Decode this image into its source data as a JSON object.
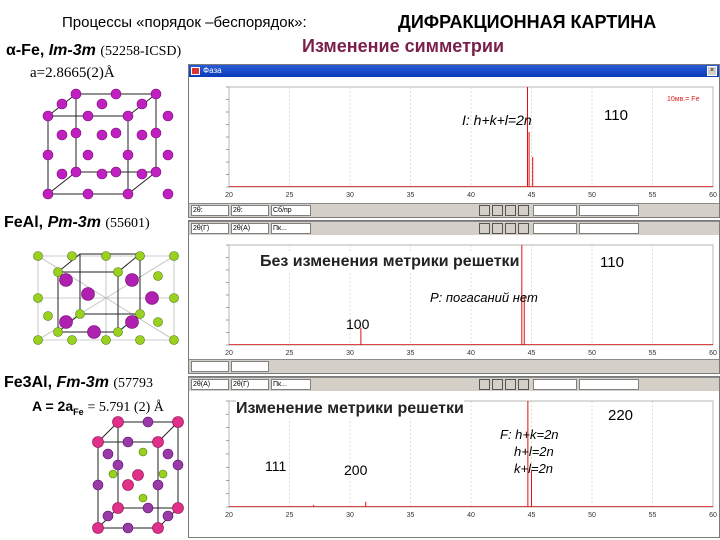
{
  "header": {
    "left_title": "Процессы «порядок –беспорядок»:",
    "right_title": "ДИФРАКЦИОННАЯ КАРТИНА",
    "subtitle": "Изменение симметрии"
  },
  "structures": [
    {
      "name": "α-Fe,",
      "space_group": "Im-3m",
      "icsd": "(52258-ICSD)",
      "lattice": "a=2.8665(2)Å"
    },
    {
      "name": "FeAl,",
      "space_group": "Pm-3m",
      "icsd": "(55601)"
    },
    {
      "name": "Fe3Al,",
      "space_group": "Fm-3m",
      "icsd": "(57793",
      "lattice_prefix": "A = 2a",
      "lattice_sub": "Fe",
      "lattice_suffix": "= 5.791 (2) Å"
    }
  ],
  "windows": [
    {
      "title": "Фаза",
      "annotation": "I: h+k+l=2n",
      "peak_label": "110",
      "legend": "10мв.= Fe",
      "status": {
        "field1": "2θ:",
        "field2": "2θ:",
        "field3": "Сб/пр"
      }
    },
    {
      "annotation_main": "Без изменения метрики решетки",
      "annotation_sub": "P: погасаний нет",
      "peak_label": "110",
      "peak_label_2": "100",
      "status": {
        "field1": "2θ(Г)",
        "field2": "2θ(А)",
        "field3": "Пк..."
      }
    },
    {
      "annotation_main": "Изменение метрики решетки",
      "rule_1": "F: h+k=2n",
      "rule_2": "h+l=2n",
      "rule_3": "k+l=2n",
      "peak_label": "220",
      "peak_label_2": "111",
      "peak_label_3": "200",
      "status": {
        "field1": "2θ(А)",
        "field2": "2θ(Г)",
        "field3": "Пк..."
      }
    }
  ],
  "chart_data": [
    {
      "type": "line",
      "series": [
        {
          "x": [
            20,
            44.67,
            44.8,
            45.1,
            60
          ],
          "y": [
            0,
            1,
            0.55,
            0.3,
            0
          ]
        }
      ],
      "x_ticks": [
        "20",
        "25",
        "30",
        "35",
        "40",
        "45",
        "50",
        "55",
        "60"
      ],
      "xlim": [
        20,
        60
      ],
      "ylim": [
        0,
        1
      ]
    },
    {
      "type": "line",
      "series": [
        {
          "x": [
            20,
            30.9,
            44.2,
            44.4,
            60
          ],
          "y": [
            0,
            0.17,
            1,
            0.5,
            0
          ]
        }
      ],
      "x_ticks": [
        "20",
        "25",
        "30",
        "35",
        "40",
        "45",
        "50",
        "55",
        "60"
      ],
      "xlim": [
        20,
        60
      ],
      "ylim": [
        0,
        1
      ]
    },
    {
      "type": "line",
      "series": [
        {
          "x": [
            20,
            27.0,
            31.3,
            44.7,
            45.0,
            60
          ],
          "y": [
            0,
            0.02,
            0.05,
            1,
            0.35,
            0
          ]
        }
      ],
      "x_ticks": [
        "20",
        "25",
        "30",
        "35",
        "40",
        "45",
        "50",
        "55",
        "60"
      ],
      "xlim": [
        20,
        60
      ],
      "ylim": [
        0,
        1
      ]
    }
  ]
}
